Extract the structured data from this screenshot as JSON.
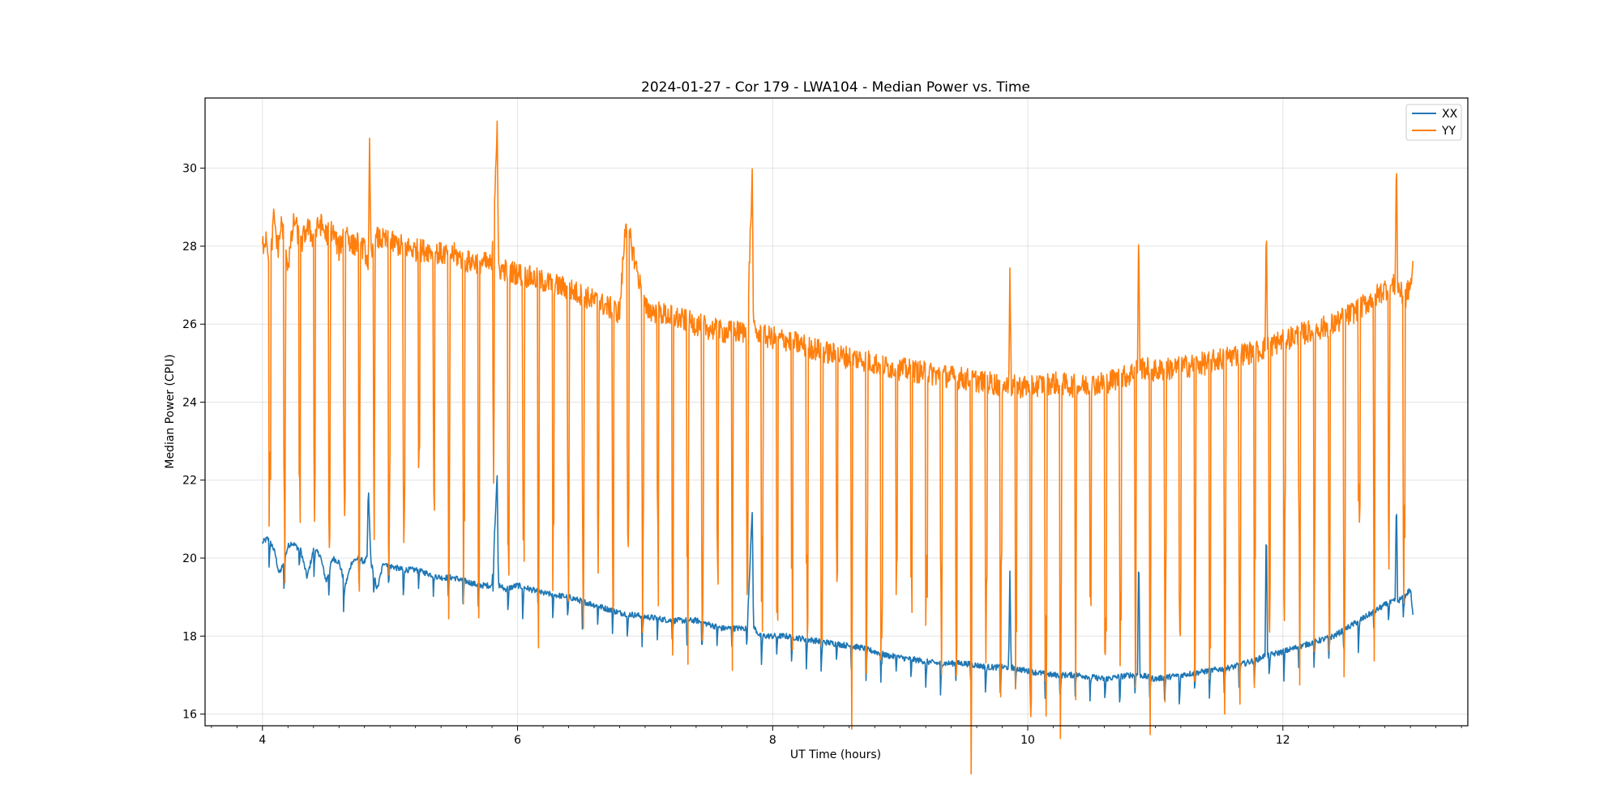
{
  "chart_data": {
    "type": "line",
    "title": "2024-01-27 - Cor 179 - LWA104 - Median Power vs. Time",
    "xlabel": "UT Time (hours)",
    "ylabel": "Median Power (CPU)",
    "xlim": [
      3.55,
      13.45
    ],
    "ylim": [
      15.7,
      31.8
    ],
    "xticks": [
      4,
      6,
      8,
      10,
      12
    ],
    "yticks": [
      16,
      18,
      20,
      22,
      24,
      26,
      28,
      30
    ],
    "grid": true,
    "legend_position": "top-right",
    "series": [
      {
        "name": "XX",
        "color": "#1f77b4",
        "x": [
          4.0,
          4.04,
          4.08,
          4.1,
          4.13,
          4.16,
          4.2,
          4.23,
          4.3,
          4.35,
          4.4,
          4.45,
          4.5,
          4.55,
          4.6,
          4.65,
          4.7,
          4.75,
          4.8,
          4.82,
          4.83,
          4.85,
          4.9,
          4.95,
          5.0,
          5.1,
          5.2,
          5.3,
          5.4,
          5.5,
          5.6,
          5.7,
          5.8,
          5.84,
          5.85,
          5.86,
          5.9,
          6.0,
          6.2,
          6.4,
          6.6,
          6.8,
          7.0,
          7.2,
          7.4,
          7.6,
          7.8,
          7.84,
          7.85,
          7.86,
          7.9,
          8.1,
          8.3,
          8.5,
          8.7,
          8.9,
          9.1,
          9.3,
          9.5,
          9.7,
          9.85,
          9.86,
          9.87,
          10.0,
          10.2,
          10.4,
          10.6,
          10.8,
          10.86,
          10.87,
          10.88,
          11.0,
          11.2,
          11.4,
          11.6,
          11.8,
          11.86,
          11.87,
          11.88,
          12.0,
          12.2,
          12.4,
          12.6,
          12.8,
          12.88,
          12.89,
          12.9,
          12.95,
          13.0,
          13.02
        ],
        "y": [
          20.4,
          20.5,
          20.3,
          20.1,
          19.6,
          19.8,
          20.3,
          20.4,
          20.2,
          19.5,
          20.2,
          20.1,
          19.4,
          20.0,
          19.9,
          19.3,
          19.9,
          20.0,
          19.9,
          20.0,
          21.8,
          19.9,
          19.2,
          19.9,
          19.8,
          19.7,
          19.7,
          19.6,
          19.5,
          19.5,
          19.4,
          19.3,
          19.3,
          22.1,
          19.3,
          19.3,
          19.2,
          19.3,
          19.1,
          19.0,
          18.8,
          18.6,
          18.5,
          18.4,
          18.4,
          18.2,
          18.2,
          21.2,
          18.2,
          18.2,
          18.0,
          18.0,
          17.9,
          17.8,
          17.7,
          17.5,
          17.4,
          17.3,
          17.3,
          17.2,
          17.2,
          19.6,
          17.2,
          17.1,
          17.0,
          17.0,
          16.9,
          17.0,
          17.0,
          20.3,
          17.0,
          16.9,
          17.0,
          17.1,
          17.2,
          17.4,
          17.5,
          21.1,
          17.5,
          17.6,
          17.8,
          18.0,
          18.4,
          18.8,
          18.9,
          21.6,
          18.9,
          19.0,
          19.2,
          18.5
        ]
      },
      {
        "name": "YY",
        "color": "#ff7f0e",
        "x": [
          4.0,
          4.03,
          4.06,
          4.09,
          4.12,
          4.15,
          4.18,
          4.2,
          4.25,
          4.3,
          4.35,
          4.4,
          4.45,
          4.5,
          4.55,
          4.6,
          4.65,
          4.7,
          4.75,
          4.8,
          4.83,
          4.84,
          4.85,
          4.9,
          5.0,
          5.1,
          5.2,
          5.3,
          5.4,
          5.5,
          5.6,
          5.7,
          5.8,
          5.84,
          5.85,
          5.86,
          5.9,
          6.0,
          6.2,
          6.4,
          6.6,
          6.8,
          6.85,
          7.0,
          7.2,
          7.4,
          7.6,
          7.8,
          7.84,
          7.85,
          7.86,
          7.9,
          8.1,
          8.3,
          8.5,
          8.7,
          8.9,
          9.1,
          9.3,
          9.5,
          9.7,
          9.85,
          9.86,
          9.87,
          10.0,
          10.2,
          10.4,
          10.6,
          10.8,
          10.86,
          10.87,
          10.88,
          11.0,
          11.2,
          11.4,
          11.6,
          11.8,
          11.86,
          11.87,
          11.88,
          12.0,
          12.2,
          12.4,
          12.6,
          12.8,
          12.88,
          12.89,
          12.9,
          12.95,
          13.0,
          13.02
        ],
        "y": [
          28.0,
          28.3,
          27.4,
          28.8,
          27.9,
          28.6,
          28.1,
          27.5,
          28.7,
          28.0,
          28.5,
          28.2,
          28.6,
          28.3,
          28.4,
          27.9,
          28.5,
          28.0,
          28.1,
          27.9,
          27.6,
          30.6,
          27.7,
          28.2,
          28.1,
          28.0,
          27.9,
          27.9,
          27.8,
          27.8,
          27.6,
          27.6,
          27.5,
          31.1,
          27.5,
          27.4,
          27.4,
          27.3,
          27.1,
          26.9,
          26.6,
          26.3,
          28.7,
          26.4,
          26.2,
          26.0,
          25.8,
          25.8,
          29.8,
          25.8,
          25.8,
          25.7,
          25.6,
          25.4,
          25.2,
          25.1,
          24.9,
          24.8,
          24.7,
          24.6,
          24.5,
          24.4,
          27.6,
          24.4,
          24.4,
          24.5,
          24.4,
          24.5,
          24.7,
          24.9,
          28.5,
          24.9,
          24.8,
          24.9,
          25.0,
          25.2,
          25.3,
          25.4,
          28.7,
          25.4,
          25.6,
          25.8,
          26.0,
          26.4,
          26.9,
          27.0,
          30.5,
          27.0,
          26.6,
          27.0,
          27.4
        ]
      }
    ],
    "dips": {
      "XX_depth": 0.9,
      "YY_depth_min": 5.0,
      "YY_depth_max": 10.0
    }
  }
}
